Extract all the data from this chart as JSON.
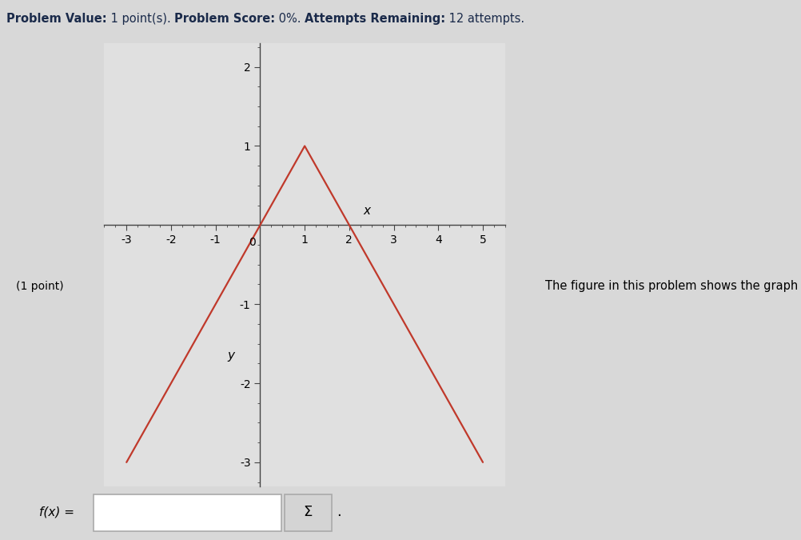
{
  "title": "",
  "xlabel": "x",
  "ylabel": "y",
  "xlim": [
    -3.5,
    5.5
  ],
  "ylim": [
    -3.3,
    2.3
  ],
  "xticks": [
    -3,
    -2,
    -1,
    1,
    2,
    3,
    4,
    5
  ],
  "yticks": [
    -3,
    -2,
    -1,
    1,
    2
  ],
  "line_color": "#c0392b",
  "line_width": 1.6,
  "x_points": [
    -3,
    0,
    1,
    2,
    5
  ],
  "y_points": [
    -3,
    0,
    1,
    0,
    -3
  ],
  "axis_color": "#444444",
  "tick_label_fontsize": 10,
  "axis_label_fontsize": 11,
  "background_color": "#d8d8d8",
  "plot_bg_color": "#e0e0e0",
  "header_text_bold1": "Problem Value:",
  "header_text_normal1": " 1 point(s). ",
  "header_text_bold2": "Problem Score:",
  "header_text_normal2": " 0%. ",
  "header_text_bold3": "Attempts Remaining:",
  "header_text_normal3": " 12 attempts.",
  "header_bg": "#c8d8e8",
  "side_text_line1": "(1 point)",
  "side_text_line2": "The figure in this problem shows the graph of",
  "bottom_label": "f(x) =",
  "zero_label": "0"
}
